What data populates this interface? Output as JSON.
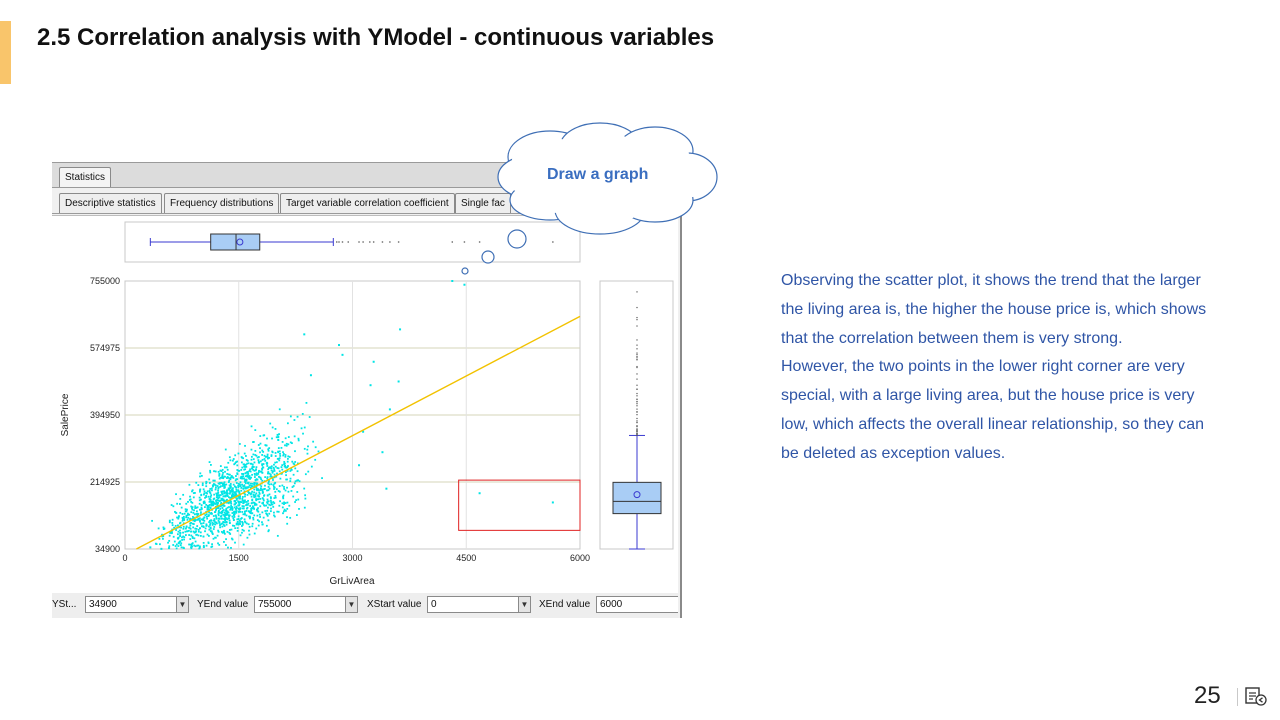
{
  "slide": {
    "title": "2.5 Correlation analysis with YModel - continuous variables",
    "page_number": "25",
    "accent_color": "#f9c56b"
  },
  "tabs_top": [
    "Statistics"
  ],
  "tabs_sub": [
    "Descriptive statistics",
    "Frequency distributions",
    "Target variable correlation coefficient",
    "Single fac"
  ],
  "callout": {
    "label": "Draw a graph"
  },
  "chart_data": {
    "type": "scatter",
    "xlabel": "GrLivArea",
    "ylabel": "SalePrice",
    "x_ticks": [
      "0",
      "1500",
      "3000",
      "4500",
      "6000"
    ],
    "y_ticks": [
      "34900",
      "214925",
      "394950",
      "574975",
      "755000"
    ],
    "xlim": [
      0,
      6000
    ],
    "ylim": [
      34900,
      755000
    ],
    "point_color": "#00e5e5",
    "trend_color": "#f2c200",
    "trend_line": {
      "x": [
        150,
        6000
      ],
      "y": [
        34900,
        660000
      ]
    },
    "outlier_box": {
      "x": [
        4400,
        6000
      ],
      "y": [
        85000,
        220000
      ],
      "color": "#e02020"
    },
    "outliers": [
      {
        "x": 4676,
        "y": 184750
      },
      {
        "x": 5642,
        "y": 160000
      }
    ],
    "notable_points": [
      {
        "x": 4316,
        "y": 755000
      },
      {
        "x": 4476,
        "y": 745000
      },
      {
        "x": 3627,
        "y": 625000
      },
      {
        "x": 2364,
        "y": 611657
      },
      {
        "x": 2822,
        "y": 582933
      },
      {
        "x": 2868,
        "y": 556581
      },
      {
        "x": 3279,
        "y": 538000
      },
      {
        "x": 2452,
        "y": 501837
      },
      {
        "x": 3608,
        "y": 485000
      },
      {
        "x": 3238,
        "y": 475000
      },
      {
        "x": 3493,
        "y": 410000
      },
      {
        "x": 3140,
        "y": 350000
      },
      {
        "x": 3395,
        "y": 295000
      },
      {
        "x": 3086,
        "y": 260000
      },
      {
        "x": 3447,
        "y": 197000
      },
      {
        "x": 334,
        "y": 39300
      },
      {
        "x": 480,
        "y": 35311
      },
      {
        "x": 1040,
        "y": 40000
      }
    ],
    "top_boxplot": {
      "whisker_low": 334,
      "q1": 1130,
      "median": 1464,
      "q3": 1777,
      "whisker_high": 2747,
      "mean": 1515,
      "outlier_x": [
        2792,
        2822,
        2868,
        2944,
        3086,
        3140,
        3228,
        3279,
        3395,
        3493,
        3608,
        4316,
        4476,
        4676,
        5642
      ]
    },
    "side_boxplot": {
      "whisker_low": 34900,
      "q1": 129975,
      "median": 163000,
      "q3": 214000,
      "whisker_high": 340000,
      "mean": 180921
    },
    "n_points": 1460
  },
  "bottom_fields": {
    "ystart_label": "YSt...",
    "ystart_value": "34900",
    "yend_label": "YEnd value",
    "yend_value": "755000",
    "xstart_label": "XStart value",
    "xstart_value": "0",
    "xend_label": "XEnd value",
    "xend_value": "6000",
    "dropdown_glyph": "▼"
  },
  "observation": {
    "p1": "Observing the scatter plot, it shows the trend that the larger the living area is, the higher the house price is, which shows that the correlation between them is very strong.",
    "p2": "However, the two points in the lower right corner are very special, with a large living area, but the house price is very low, which affects the overall linear relationship, so they can be deleted as exception values.",
    "text_color": "#2f55a6"
  }
}
